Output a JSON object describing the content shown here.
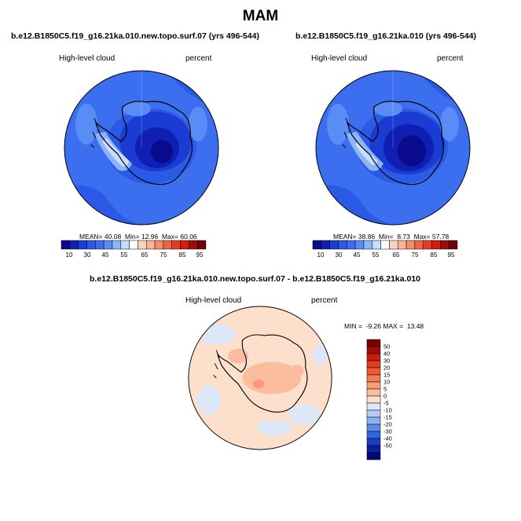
{
  "season": "MAM",
  "panel1": {
    "title": "b.e12.B1850C5.f19_g16.21ka.010.new.topo.surf.07 (yrs 496-544)",
    "variable": "High-level cloud",
    "units": "percent",
    "stats": {
      "mean_label": "MEAN=",
      "mean": "40.08",
      "min_label": "Min=",
      "min": "12.96",
      "max_label": "Max=",
      "max": "60.06"
    }
  },
  "panel2": {
    "title": "b.e12.B1850C5.f19_g16.21ka.010 (yrs 496-544)",
    "variable": "High-level cloud",
    "units": "percent",
    "stats": {
      "mean_label": "MEAN=",
      "mean": "38.86",
      "min_label": "Min=",
      "min": "8.73",
      "max_label": "Max=",
      "max": "57.78"
    }
  },
  "panel3": {
    "title": "b.e12.B1850C5.f19_g16.21ka.010.new.topo.surf.07 - b.e12.B1850C5.f19_g16.21ka.010",
    "variable": "High-level cloud",
    "units": "percent",
    "stats": {
      "min_label": "MIN =",
      "min": "-9.26",
      "max_label": "MAX =",
      "max": "13.48"
    }
  },
  "chart_data": [
    {
      "type": "heatmap",
      "projection": "south-polar-stereographic",
      "colorbar": {
        "orientation": "horizontal",
        "tick_labels": [
          "10",
          "30",
          "45",
          "55",
          "65",
          "75",
          "85",
          "95"
        ],
        "colors": [
          "#0a0a8c",
          "#0f1fb4",
          "#1a3cd2",
          "#2a5ae6",
          "#3c6ef0",
          "#5a8cf5",
          "#8cb4fa",
          "#c8dcfc",
          "#ffffff",
          "#fcd2be",
          "#fab496",
          "#f58c6e",
          "#f06446",
          "#e63c23",
          "#d21e0a",
          "#a00a0a",
          "#6e0505"
        ]
      }
    },
    {
      "type": "heatmap",
      "projection": "south-polar-stereographic",
      "colorbar": {
        "orientation": "horizontal",
        "tick_labels": [
          "10",
          "30",
          "45",
          "55",
          "65",
          "75",
          "85",
          "95"
        ],
        "colors": [
          "#0a0a8c",
          "#0f1fb4",
          "#1a3cd2",
          "#2a5ae6",
          "#3c6ef0",
          "#5a8cf5",
          "#8cb4fa",
          "#c8dcfc",
          "#ffffff",
          "#fcd2be",
          "#fab496",
          "#f58c6e",
          "#f06446",
          "#e63c23",
          "#d21e0a",
          "#a00a0a",
          "#6e0505"
        ]
      }
    },
    {
      "type": "heatmap",
      "projection": "south-polar-stereographic",
      "colorbar": {
        "orientation": "vertical",
        "tick_labels": [
          "50",
          "40",
          "30",
          "20",
          "15",
          "10",
          "5",
          "0",
          "-5",
          "-10",
          "-15",
          "-20",
          "-30",
          "-40",
          "-50"
        ],
        "colors": [
          "#7a0000",
          "#a00a0a",
          "#c81e0f",
          "#e03c1e",
          "#f05a32",
          "#f57d55",
          "#fa9b78",
          "#fcbc9e",
          "#fde0cc",
          "#dce8fa",
          "#b4ccf5",
          "#8cb0f0",
          "#5a8ceb",
          "#3264e1",
          "#1e3cc8",
          "#0f1ea0",
          "#050a73"
        ]
      }
    }
  ]
}
